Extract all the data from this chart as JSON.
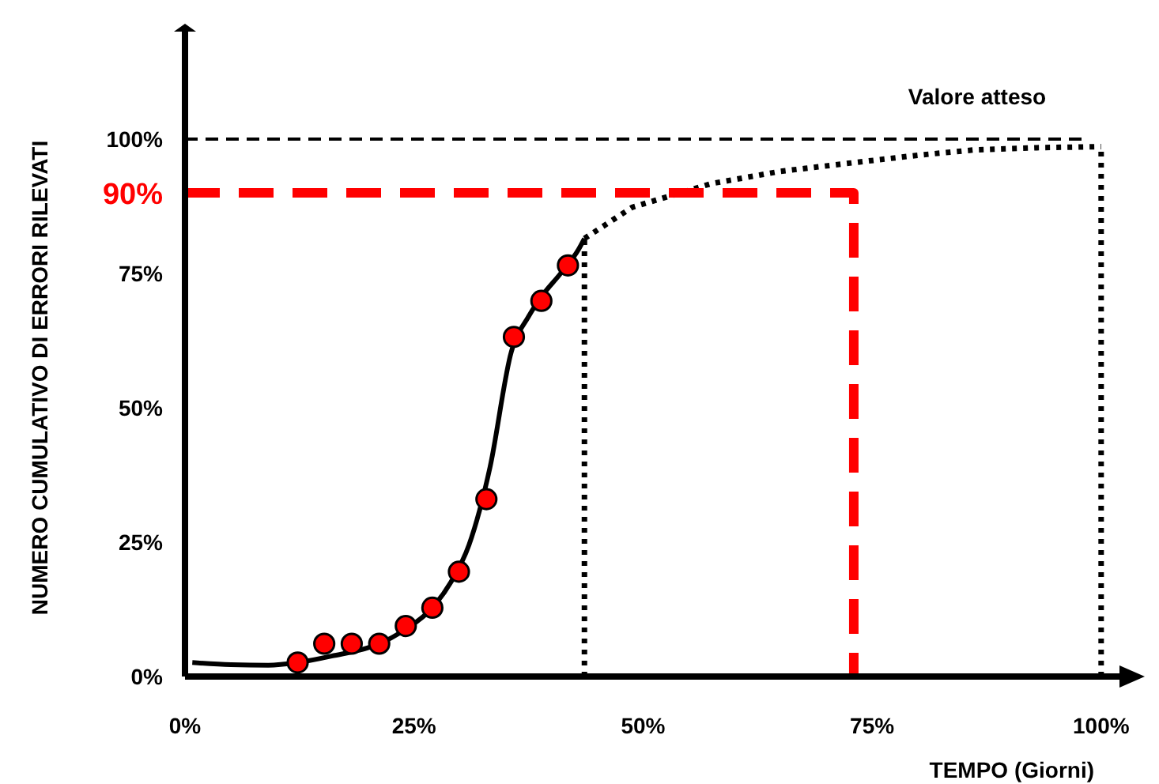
{
  "chart_data": {
    "type": "line",
    "xlabel": "TEMPO (Giorni)",
    "ylabel": "NUMERO CUMULATIVO DI ERRORI RILEVATI",
    "xlim": [
      0,
      102
    ],
    "ylim": [
      0,
      120
    ],
    "xticks": [
      {
        "value": 0,
        "label": "0%"
      },
      {
        "value": 25,
        "label": "25%"
      },
      {
        "value": 50,
        "label": "50%"
      },
      {
        "value": 75,
        "label": "75%"
      },
      {
        "value": 100,
        "label": "100%"
      }
    ],
    "yticks": [
      {
        "value": 0,
        "label": "0%"
      },
      {
        "value": 25,
        "label": "25%"
      },
      {
        "value": 50,
        "label": "50%"
      },
      {
        "value": 75,
        "label": "75%"
      },
      {
        "value": 100,
        "label": "100%"
      }
    ],
    "grid": false,
    "series": [
      {
        "color": "#000000",
        "line_style": "solid",
        "marker": "none",
        "x": [
          0.8,
          5,
          9.1,
          12.3,
          16,
          21.2,
          24,
          27,
          29,
          31,
          33.3,
          35.6,
          37.5,
          39,
          41,
          43,
          43.6
        ],
        "values": [
          2.6,
          2.2,
          2.1,
          2.6,
          3.8,
          6.1,
          8.7,
          12.8,
          17.5,
          24.5,
          39,
          60.3,
          67,
          70.9,
          75,
          79.6,
          81.5
        ]
      },
      {
        "color": "#000000",
        "line_style": "dotted",
        "marker": "none",
        "x": [
          43.6,
          48.8,
          57.4,
          65,
          72.9,
          80,
          86.2,
          93,
          100
        ],
        "values": [
          81.5,
          87.3,
          91.7,
          94,
          95.6,
          97,
          98,
          98.4,
          98.6
        ]
      },
      {
        "color": "#000000",
        "line_style": "dotted",
        "marker": "none",
        "x": [
          43.6,
          43.6
        ],
        "values": [
          0,
          81.5
        ]
      },
      {
        "color": "#000000",
        "line_style": "dotted",
        "marker": "none",
        "x": [
          100,
          100
        ],
        "values": [
          0,
          98.6
        ]
      },
      {
        "color": "#ff0000",
        "line_style": "dashed",
        "marker": "none",
        "x": [
          0,
          73,
          73
        ],
        "values": [
          90,
          90,
          0
        ]
      },
      {
        "type": "scatter",
        "color": "#ff0000",
        "marker": "circle",
        "x": [
          12.3,
          15.2,
          18.2,
          21.2,
          24.1,
          27,
          29.9,
          32.9,
          35.9,
          38.9,
          41.8
        ],
        "values": [
          2.6,
          6.1,
          6.1,
          6.1,
          9.4,
          12.8,
          19.5,
          33,
          63.2,
          69.9,
          76.5
        ]
      }
    ],
    "ref_lines": [
      {
        "axis": "y",
        "value": 100,
        "label": "Valore atteso",
        "line_style": "dashed",
        "color": "#000000"
      }
    ],
    "annotations": [
      {
        "text": "90%",
        "x": 0,
        "y": 90
      }
    ]
  }
}
